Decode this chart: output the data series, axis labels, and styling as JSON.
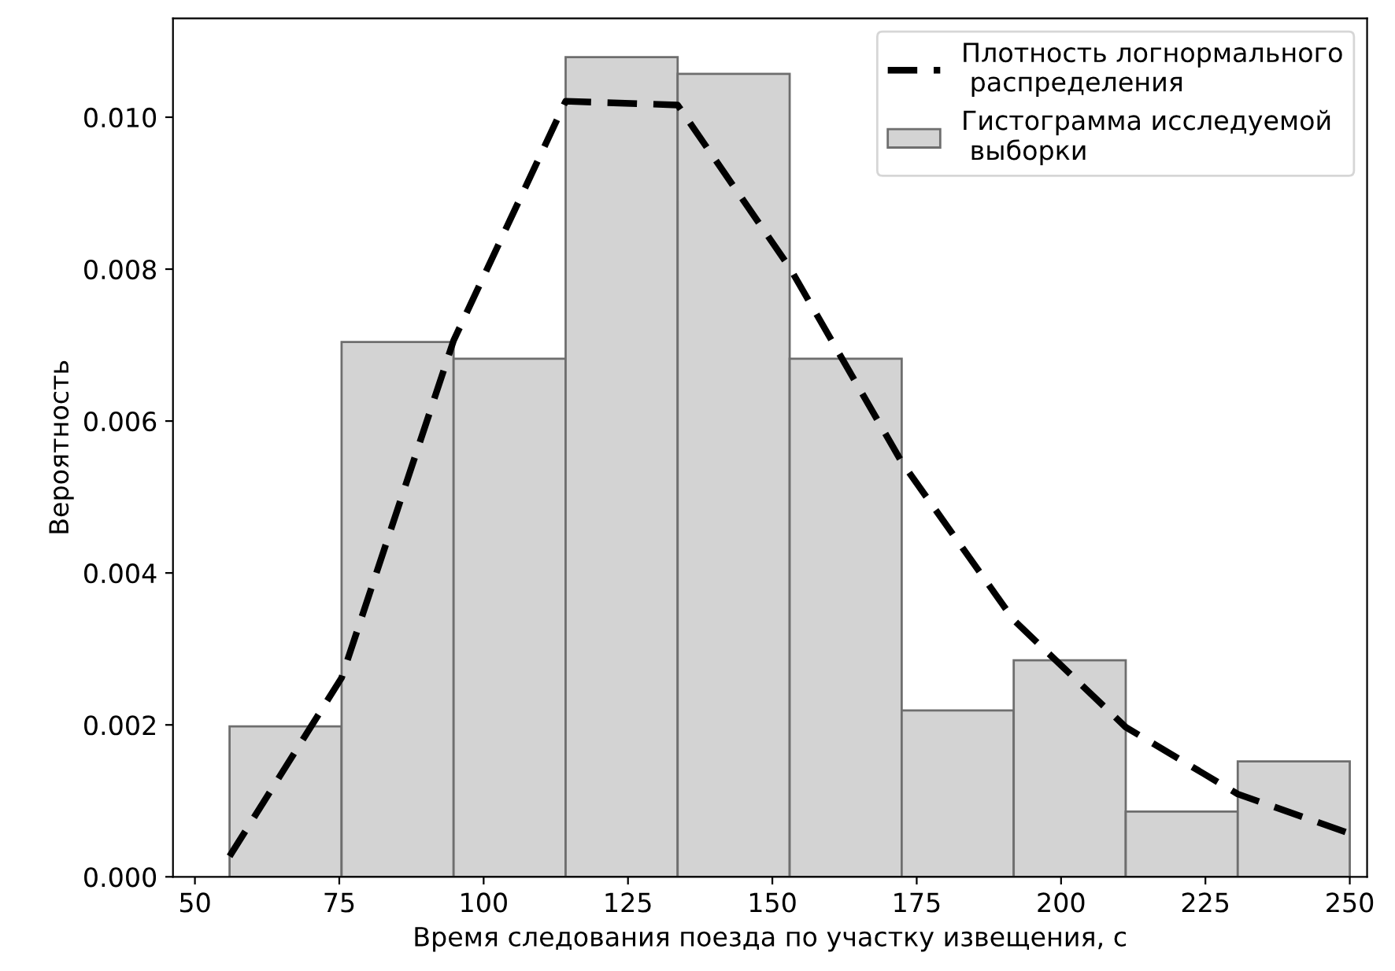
{
  "chart_data": {
    "type": "histogram",
    "xlabel": "Время следования поезда по участку извещения, с",
    "ylabel": "Вероятность",
    "bins": [
      56,
      75.4,
      94.8,
      114.2,
      133.6,
      153,
      172.4,
      191.8,
      211.2,
      230.6,
      250
    ],
    "series": [
      {
        "type": "line",
        "name": "Плотность логнормального\n распределения",
        "color": "#000000",
        "line_style": "dashed",
        "x": [
          56,
          75.4,
          94.8,
          114.2,
          133.6,
          153,
          172.4,
          191.8,
          211.2,
          230.6,
          250
        ],
        "values": [
          0.00027,
          0.00262,
          0.00706,
          0.01021,
          0.01016,
          0.00802,
          0.00546,
          0.00338,
          0.00197,
          0.00109,
          0.00057
        ]
      },
      {
        "name": "Гистограмма исследуемой\n выборки",
        "color": "#d3d3d3",
        "values": [
          0.00198,
          0.00704,
          0.00682,
          0.01079,
          0.01057,
          0.00682,
          0.00219,
          0.00285,
          0.00086,
          0.00152
        ]
      }
    ],
    "xlim": [
      46.2,
      253
    ],
    "ylim": [
      0,
      0.0113
    ],
    "xticks": [
      50,
      75,
      100,
      125,
      150,
      175,
      200,
      225,
      250
    ],
    "yticks": [
      {
        "value": 0,
        "label": "0.000"
      },
      {
        "value": 0.002,
        "label": "0.002"
      },
      {
        "value": 0.004,
        "label": "0.004"
      },
      {
        "value": 0.006,
        "label": "0.006"
      },
      {
        "value": 0.008,
        "label": "0.008"
      },
      {
        "value": 0.01,
        "label": "0.010"
      }
    ],
    "grid": false,
    "legend": "top right"
  }
}
